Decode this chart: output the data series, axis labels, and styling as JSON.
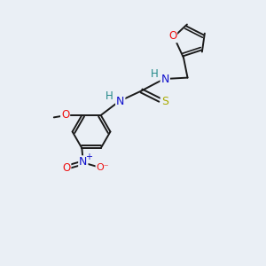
{
  "background_color": "#eaeff5",
  "bond_color": "#1a1a1a",
  "atom_colors": {
    "O": "#ee1111",
    "N": "#1111cc",
    "S": "#aaaa00",
    "H": "#228888",
    "C": "#1a1a1a"
  },
  "figsize": [
    3.0,
    3.0
  ],
  "dpi": 100,
  "xlim": [
    0,
    10
  ],
  "ylim": [
    0,
    10
  ]
}
